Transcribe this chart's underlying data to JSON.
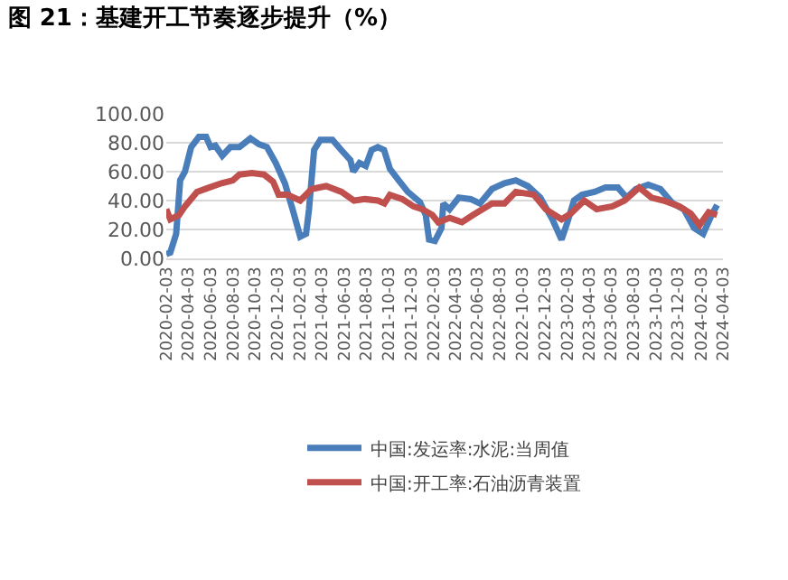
{
  "chart_data": {
    "type": "line",
    "title": "图 21：基建开工节奏逐步提升（%）",
    "series": [
      {
        "name": "中国:发运率:水泥:当周值",
        "color": "#4a7ebb",
        "x": [
          "2020-02-03",
          "2020-02-14",
          "2020-03-01",
          "2020-03-12",
          "2020-03-25",
          "2020-04-11",
          "2020-05-02",
          "2020-05-22",
          "2020-06-03",
          "2020-06-16",
          "2020-07-05",
          "2020-07-27",
          "2020-08-21",
          "2020-09-20",
          "2020-10-13",
          "2020-11-04",
          "2020-11-28",
          "2020-12-23",
          "2021-01-13",
          "2021-02-03",
          "2021-02-19",
          "2021-02-27",
          "2021-03-13",
          "2021-03-30",
          "2021-05-02",
          "2021-05-26",
          "2021-06-20",
          "2021-06-28",
          "2021-07-15",
          "2021-08-01",
          "2021-08-17",
          "2021-09-03",
          "2021-09-20",
          "2021-10-06",
          "2021-10-30",
          "2021-11-24",
          "2021-12-27",
          "2022-01-12",
          "2022-01-21",
          "2022-02-06",
          "2022-02-24",
          "2022-03-01",
          "2022-03-18",
          "2022-04-12",
          "2022-05-15",
          "2022-06-09",
          "2022-07-12",
          "2022-08-15",
          "2022-09-15",
          "2022-10-18",
          "2022-11-21",
          "2022-12-24",
          "2023-01-18",
          "2023-02-03",
          "2023-02-21",
          "2023-03-15",
          "2023-04-18",
          "2023-05-18",
          "2023-06-21",
          "2023-07-15",
          "2023-08-09",
          "2023-09-12",
          "2023-10-15",
          "2023-11-18",
          "2023-12-18",
          "2024-01-15",
          "2024-02-09",
          "2024-03-03",
          "2024-03-18"
        ],
        "values": [
          3,
          4,
          17,
          54,
          60,
          77,
          84,
          84,
          77,
          78,
          71,
          77,
          77,
          83,
          79,
          77,
          66,
          52,
          34,
          15,
          17,
          34,
          75,
          82,
          82,
          75,
          68,
          60,
          66,
          64,
          75,
          77,
          75,
          62,
          54,
          46,
          39,
          30,
          13,
          12,
          21,
          38,
          34,
          42,
          41,
          38,
          48,
          52,
          54,
          50,
          42,
          27,
          13,
          25,
          40,
          44,
          46,
          49,
          49,
          42,
          48,
          51,
          48,
          38,
          34,
          21,
          17,
          30,
          37
        ]
      },
      {
        "name": "中国:开工率:石油沥青装置",
        "color": "#c0504d",
        "x": [
          "2020-02-03",
          "2020-02-14",
          "2020-03-09",
          "2020-03-25",
          "2020-04-27",
          "2020-05-30",
          "2020-07-03",
          "2020-08-03",
          "2020-08-21",
          "2020-09-24",
          "2020-10-27",
          "2020-11-21",
          "2020-12-06",
          "2020-12-30",
          "2021-02-03",
          "2021-03-06",
          "2021-04-15",
          "2021-05-27",
          "2021-06-30",
          "2021-07-30",
          "2021-09-03",
          "2021-09-21",
          "2021-10-06",
          "2021-11-09",
          "2021-12-09",
          "2022-01-03",
          "2022-01-30",
          "2022-02-15",
          "2022-03-18",
          "2022-04-21",
          "2022-05-21",
          "2022-07-12",
          "2022-08-15",
          "2022-09-15",
          "2022-11-03",
          "2022-12-06",
          "2023-01-18",
          "2023-02-12",
          "2023-03-21",
          "2023-04-24",
          "2023-06-06",
          "2023-07-09",
          "2023-08-18",
          "2023-09-21",
          "2023-10-24",
          "2023-12-06",
          "2024-01-06",
          "2024-01-30",
          "2024-02-24",
          "2024-03-18"
        ],
        "values": [
          34,
          27,
          30,
          36,
          46,
          49,
          52,
          54,
          58,
          59,
          58,
          53,
          44,
          44,
          40,
          48,
          50,
          46,
          40,
          41,
          40,
          38,
          44,
          41,
          36,
          34,
          30,
          25,
          28,
          25,
          30,
          38,
          38,
          46,
          44,
          34,
          27,
          31,
          40,
          34,
          36,
          40,
          49,
          42,
          40,
          36,
          31,
          23,
          32,
          30
        ]
      }
    ],
    "xlim": [
      "2020-02-03",
      "2024-04-03"
    ],
    "xticks": [
      "2020-02-03",
      "2020-04-03",
      "2020-06-03",
      "2020-08-03",
      "2020-10-03",
      "2020-12-03",
      "2021-02-03",
      "2021-04-03",
      "2021-06-03",
      "2021-08-03",
      "2021-10-03",
      "2021-12-03",
      "2022-02-03",
      "2022-04-03",
      "2022-06-03",
      "2022-08-03",
      "2022-10-03",
      "2022-12-03",
      "2023-02-03",
      "2023-04-03",
      "2023-06-03",
      "2023-08-03",
      "2023-10-03",
      "2023-12-03",
      "2024-02-03",
      "2024-04-03"
    ],
    "ylim": [
      0,
      100
    ],
    "yticks": [
      {
        "value": 0,
        "label": "0.00"
      },
      {
        "value": 20,
        "label": "20.00"
      },
      {
        "value": 40,
        "label": "40.00"
      },
      {
        "value": 60,
        "label": "60.00"
      },
      {
        "value": 80,
        "label": "80.00"
      },
      {
        "value": 100,
        "label": "100.00"
      }
    ],
    "grid": "y",
    "legend": "bottom",
    "marker": "none",
    "line_style": "solid"
  }
}
